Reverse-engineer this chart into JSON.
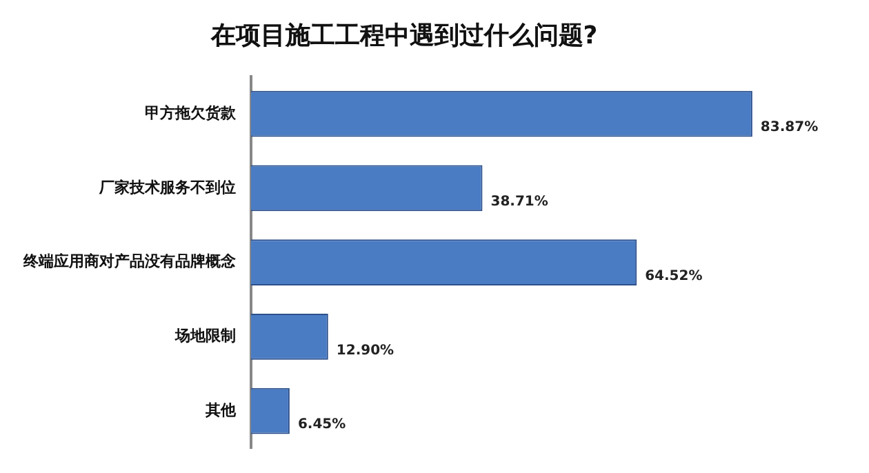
{
  "chart_data": {
    "type": "bar",
    "orientation": "horizontal",
    "title": "在项目施工工程中遇到过什么问题?",
    "categories": [
      "甲方拖欠货款",
      "厂家技术服务不到位",
      "终端应用商对产品没有品牌概念",
      "场地限制",
      "其他"
    ],
    "values": [
      83.87,
      38.71,
      64.52,
      12.9,
      6.45
    ],
    "value_labels": [
      "83.87%",
      "38.71%",
      "64.52%",
      "12.90%",
      "6.45%"
    ],
    "color": "#4a7cc4",
    "legend": false
  }
}
